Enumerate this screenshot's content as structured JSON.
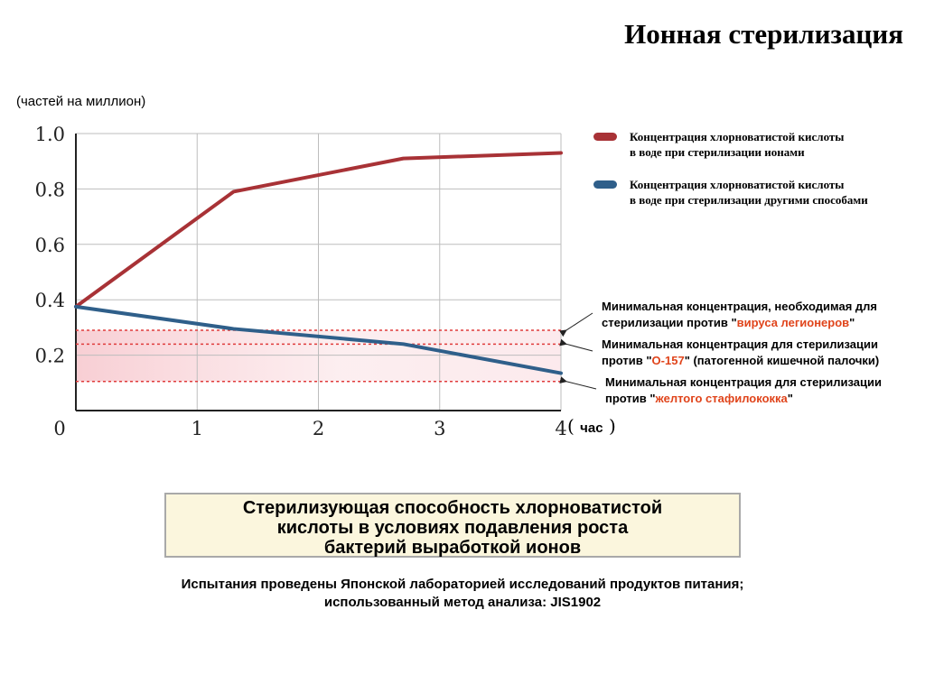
{
  "title": "Ионная стерилизация",
  "chart_data": {
    "type": "line",
    "ylabel": "(частей на миллион)",
    "xlabel": "час",
    "xlim": [
      0,
      4
    ],
    "ylim": [
      0,
      1.0
    ],
    "x_ticks": [
      "0",
      "1",
      "2",
      "3",
      "4"
    ],
    "y_ticks": [
      "1.0",
      "0.8",
      "0.6",
      "0.4",
      "0.2"
    ],
    "grid": true,
    "series": [
      {
        "name": "Концентрация хлорноватистой кислоты в воде при стерилизации ионами",
        "color": "#a83236",
        "x": [
          0,
          1.3,
          2.7,
          4.0
        ],
        "y": [
          0.375,
          0.79,
          0.91,
          0.93
        ]
      },
      {
        "name": "Концентрация хлорноватистой кислоты в воде при стерилизации другими способами",
        "color": "#2f5f8a",
        "x": [
          0,
          1.3,
          2.7,
          4.0
        ],
        "y": [
          0.375,
          0.295,
          0.24,
          0.135
        ]
      }
    ],
    "thresholds": [
      {
        "y": 0.29,
        "color": "#e03c3c"
      },
      {
        "y": 0.24,
        "color": "#e03c3c"
      },
      {
        "y": 0.105,
        "color": "#e03c3c"
      }
    ]
  },
  "legend": [
    {
      "line1": "Концентрация хлорноватистой кислоты",
      "line2": "в воде при стерилизации ионами",
      "color": "#a83236"
    },
    {
      "line1": "Концентрация хлорноватистой кислоты",
      "line2": "в воде при стерилизации другими способами",
      "color": "#2f5f8a"
    }
  ],
  "annotations": [
    {
      "line1": "Минимальная концентрация, необходимая для",
      "pre": "стерилизации против \"",
      "highlight": "вируса легионеров",
      "post": "\""
    },
    {
      "line1": "Минимальная концентрация для стерилизации",
      "pre": "против \"",
      "highlight": "О-157",
      "post": "\" (патогенной  кишечной палочки)"
    },
    {
      "line1": "Минимальная концентрация для стерилизации",
      "pre": "против \"",
      "highlight": "желтого стафилококка",
      "post": "\""
    }
  ],
  "x_unit": {
    "open": "(",
    "label": "час",
    "close": ")"
  },
  "caption": {
    "line1": "Стерилизующая способность хлорноватистой",
    "line2": "кислоты в условиях подавления роста",
    "line3": "бактерий выработкой ионов"
  },
  "footnote": {
    "line1": "Испытания проведены Японской лабораторией исследований продуктов питания;",
    "line2": "использованный метод анализа: JIS1902"
  }
}
